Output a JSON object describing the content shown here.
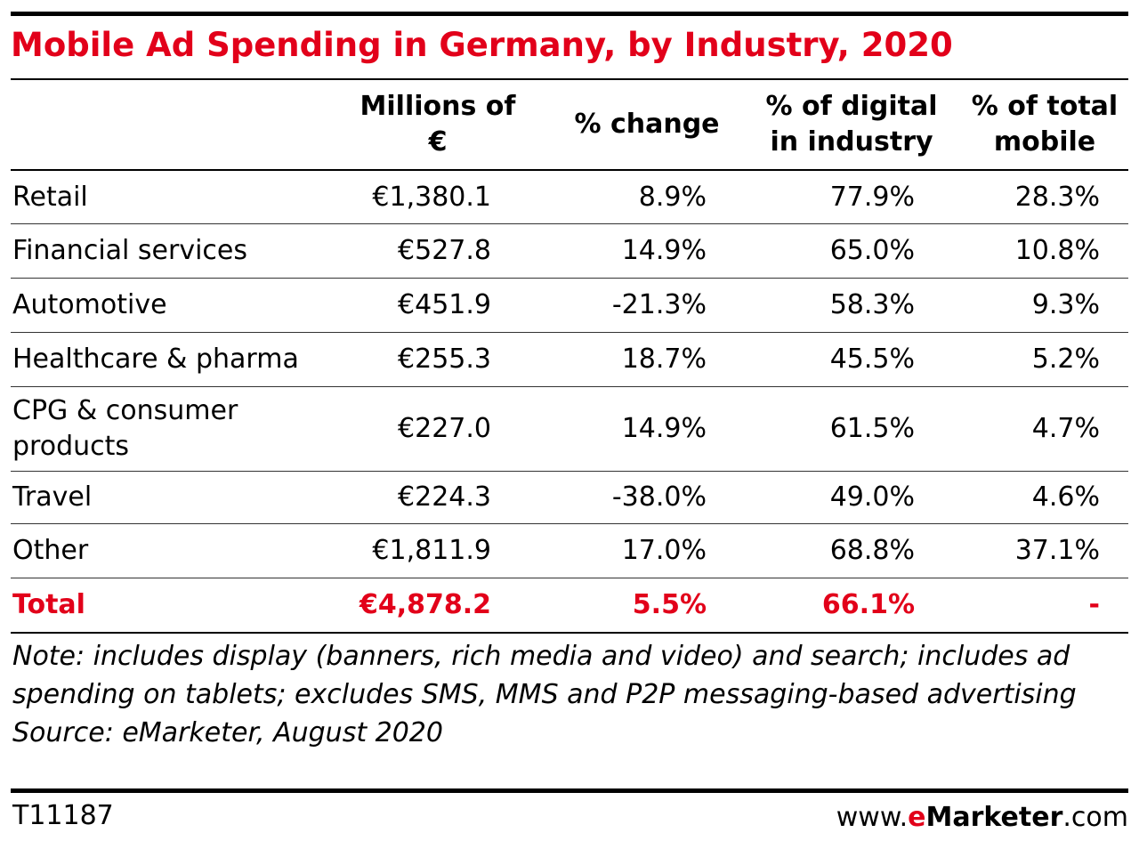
{
  "title": "Mobile Ad Spending in Germany, by Industry, 2020",
  "chart_data": {
    "type": "table",
    "title": "Mobile Ad Spending in Germany, by Industry, 2020",
    "columns": [
      "",
      "Millions of €",
      "% change",
      "% of digital in industry",
      "% of total mobile"
    ],
    "rows": [
      {
        "label": "Retail",
        "values": [
          "€1,380.1",
          "8.9%",
          "77.9%",
          "28.3%"
        ]
      },
      {
        "label": "Financial services",
        "values": [
          "€527.8",
          "14.9%",
          "65.0%",
          "10.8%"
        ]
      },
      {
        "label": "Automotive",
        "values": [
          "€451.9",
          "-21.3%",
          "58.3%",
          "9.3%"
        ]
      },
      {
        "label": "Healthcare & pharma",
        "values": [
          "€255.3",
          "18.7%",
          "45.5%",
          "5.2%"
        ]
      },
      {
        "label": "CPG & consumer products",
        "values": [
          "€227.0",
          "14.9%",
          "61.5%",
          "4.7%"
        ]
      },
      {
        "label": "Travel",
        "values": [
          "€224.3",
          "-38.0%",
          "49.0%",
          "4.6%"
        ]
      },
      {
        "label": "Other",
        "values": [
          "€1,811.9",
          "17.0%",
          "68.8%",
          "37.1%"
        ]
      }
    ],
    "total": {
      "label": "Total",
      "values": [
        "€4,878.2",
        "5.5%",
        "66.1%",
        "-"
      ]
    }
  },
  "header": {
    "col1": "Millions of  €",
    "col2": "% change",
    "col3": "% of digital in industry",
    "col4": "% of total mobile"
  },
  "note": "Note: includes display (banners, rich media and video) and search; includes ad spending on tablets; excludes SMS, MMS and P2P messaging-based advertising",
  "source": "Source: eMarketer, August 2020",
  "footer": {
    "code": "T11187",
    "brand_prefix": "www.",
    "brand_e": "e",
    "brand_name": "Marketer",
    "brand_suffix": ".com"
  },
  "colors": {
    "accent": "#e2001a",
    "text": "#000000"
  }
}
